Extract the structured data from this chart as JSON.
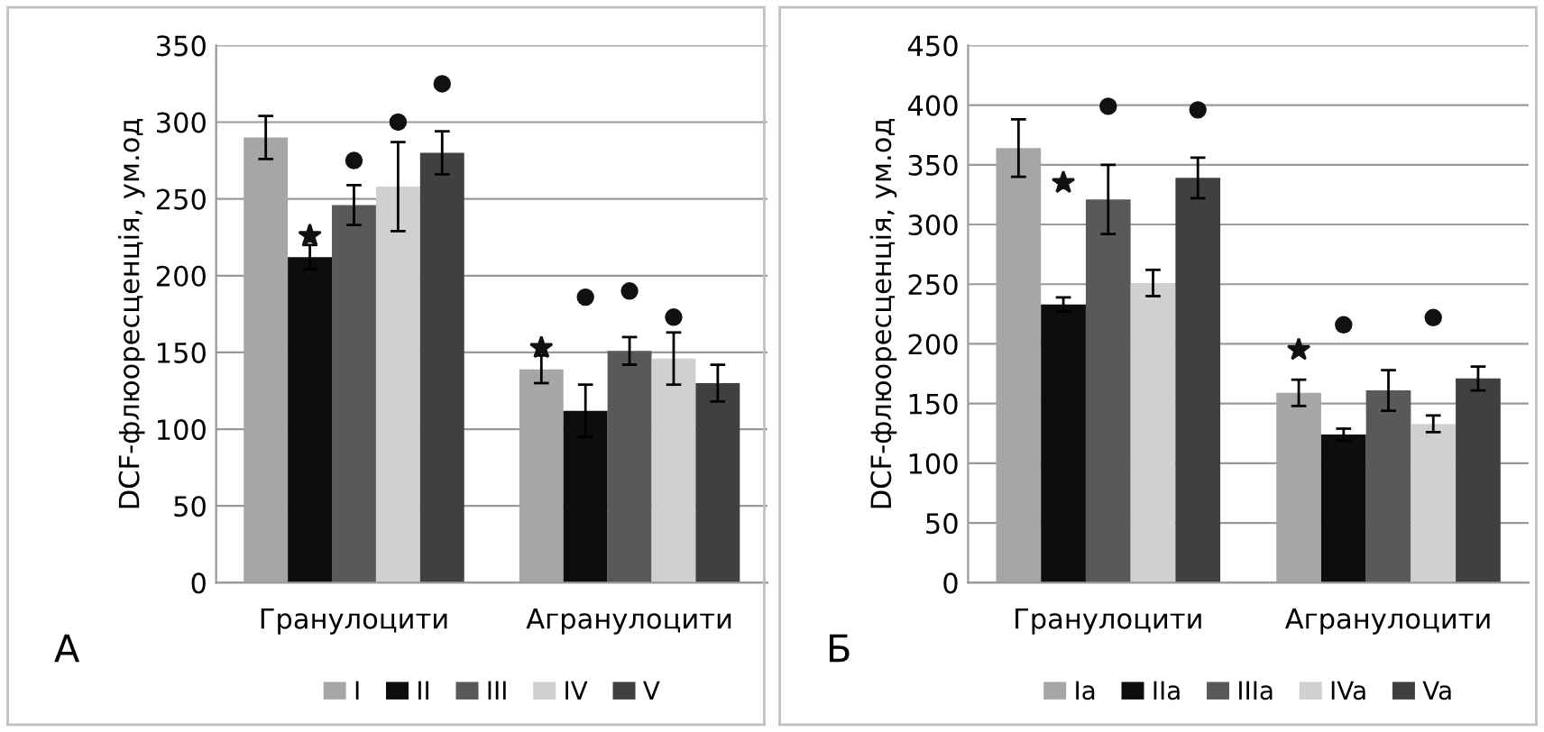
{
  "chart_data": [
    {
      "type": "bar",
      "ylabel": "DCF-флюоресценція, ум.од",
      "categories": [
        "Гранулоцити",
        "Агранулоцити"
      ],
      "ylim": [
        0,
        350
      ],
      "yticks": [
        0,
        50,
        100,
        150,
        200,
        250,
        300,
        350
      ],
      "grid": "y",
      "legend": "bottom",
      "annotations": [
        "А"
      ],
      "series": [
        {
          "name": "I",
          "color": "#a6a6a6",
          "values": [
            290,
            139
          ],
          "errors": [
            14,
            9
          ]
        },
        {
          "type": "scatter",
          "marker": "star",
          "color": "#111111",
          "values": [
            null,
            153
          ]
        },
        {
          "name": "II",
          "color": "#0d0d0d",
          "values": [
            212,
            112
          ],
          "errors": [
            8,
            17
          ]
        },
        {
          "type": "scatter",
          "marker": "star",
          "color": "#111111",
          "values": [
            226,
            null
          ]
        },
        {
          "type": "scatter",
          "marker": "circle",
          "color": "#111111",
          "values": [
            null,
            186
          ]
        },
        {
          "name": "III",
          "color": "#595959",
          "values": [
            246,
            151
          ],
          "errors": [
            13,
            9
          ]
        },
        {
          "type": "scatter",
          "marker": "circle",
          "color": "#111111",
          "values": [
            275,
            190
          ]
        },
        {
          "name": "IV",
          "color": "#d0d0d0",
          "values": [
            258,
            146
          ],
          "errors": [
            29,
            17
          ]
        },
        {
          "type": "scatter",
          "marker": "circle",
          "color": "#111111",
          "values": [
            300,
            173
          ]
        },
        {
          "name": "V",
          "color": "#404040",
          "values": [
            280,
            130
          ],
          "errors": [
            14,
            12
          ]
        },
        {
          "type": "scatter",
          "marker": "circle",
          "color": "#111111",
          "values": [
            325,
            null
          ]
        }
      ]
    },
    {
      "type": "bar",
      "ylabel": "DCF-флюоресценція, ум.од",
      "categories": [
        "Гранулоцити",
        "Агранулоцити"
      ],
      "ylim": [
        0,
        450
      ],
      "yticks": [
        0,
        50,
        100,
        150,
        200,
        250,
        300,
        350,
        400,
        450
      ],
      "grid": "y",
      "legend": "bottom",
      "annotations": [
        "Б"
      ],
      "series": [
        {
          "name": "Ia",
          "color": "#a6a6a6",
          "values": [
            364,
            159
          ],
          "errors": [
            24,
            11
          ]
        },
        {
          "type": "scatter",
          "marker": "star",
          "color": "#111111",
          "values": [
            null,
            195
          ]
        },
        {
          "name": "IIa",
          "color": "#0d0d0d",
          "values": [
            233,
            124
          ],
          "errors": [
            6,
            5
          ]
        },
        {
          "type": "scatter",
          "marker": "star",
          "color": "#111111",
          "values": [
            335,
            null
          ]
        },
        {
          "type": "scatter",
          "marker": "circle",
          "color": "#111111",
          "values": [
            null,
            216
          ]
        },
        {
          "name": "IIIa",
          "color": "#595959",
          "values": [
            321,
            161
          ],
          "errors": [
            29,
            17
          ]
        },
        {
          "type": "scatter",
          "marker": "circle",
          "color": "#111111",
          "values": [
            399,
            null
          ]
        },
        {
          "name": "IVa",
          "color": "#d0d0d0",
          "values": [
            251,
            133
          ],
          "errors": [
            11,
            7
          ]
        },
        {
          "type": "scatter",
          "marker": "circle",
          "color": "#111111",
          "values": [
            null,
            222
          ]
        },
        {
          "name": "Va",
          "color": "#404040",
          "values": [
            339,
            171
          ],
          "errors": [
            17,
            10
          ]
        },
        {
          "type": "scatter",
          "marker": "circle",
          "color": "#111111",
          "values": [
            396,
            null
          ]
        }
      ]
    }
  ]
}
